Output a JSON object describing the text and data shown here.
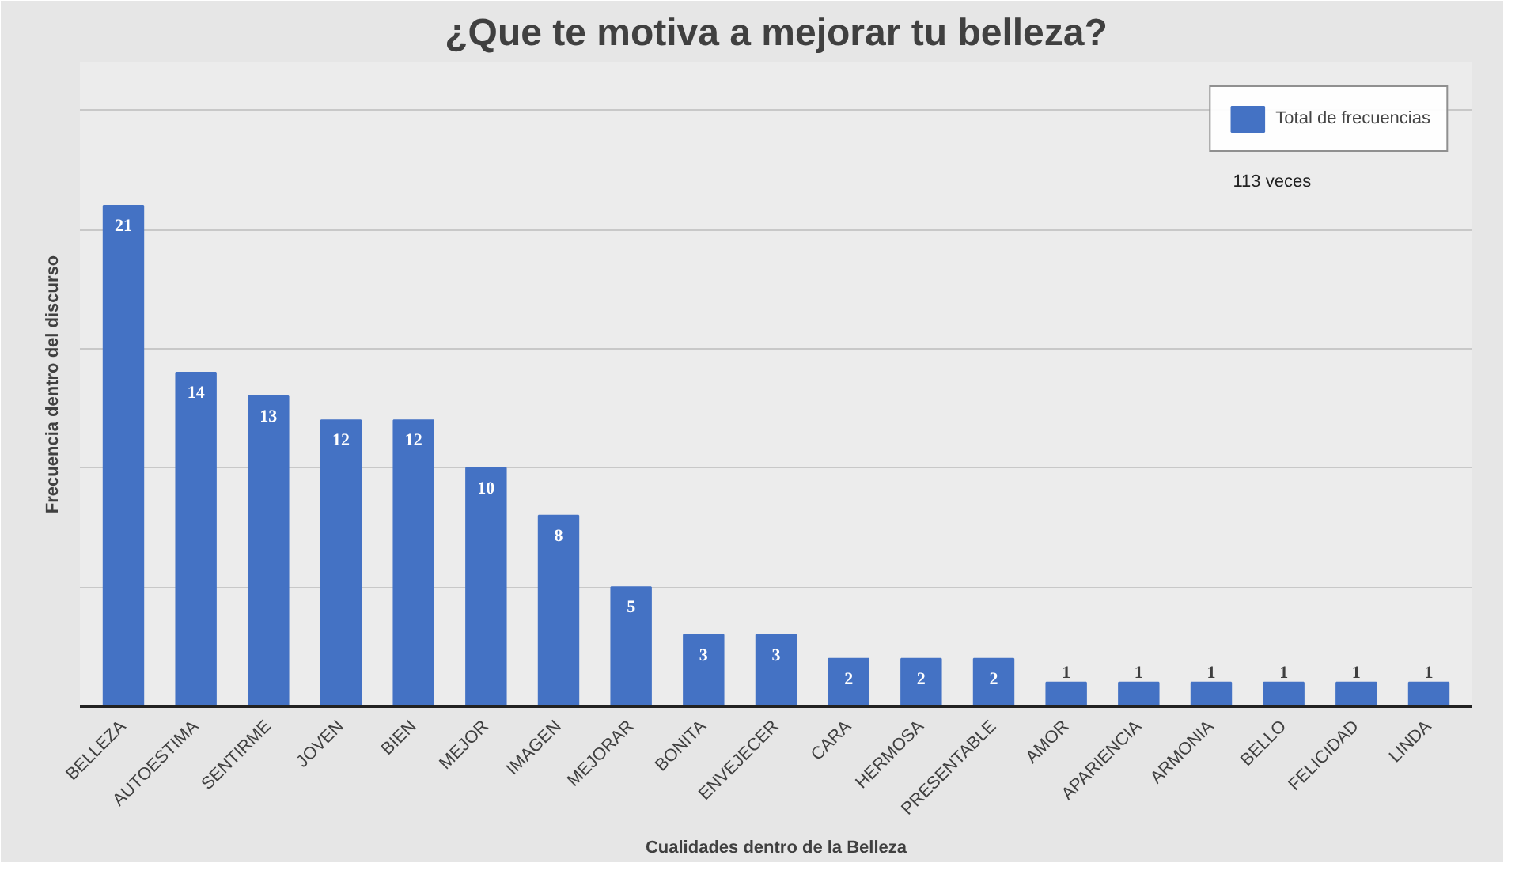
{
  "chart_data": {
    "type": "bar",
    "title": "¿Que te motiva a mejorar tu belleza?",
    "xlabel": "Cualidades dentro de la Belleza",
    "ylabel": "Frecuencia dentro del discurso",
    "categories": [
      "BELLEZA",
      "AUTOESTIMA",
      "SENTIRME",
      "JOVEN",
      "BIEN",
      "MEJOR",
      "IMAGEN",
      "MEJORAR",
      "BONITA",
      "ENVEJECER",
      "CARA",
      "HERMOSA",
      "PRESENTABLE",
      "AMOR",
      "APARIENCIA",
      "ARMONIA",
      "BELLO",
      "FELICIDAD",
      "LINDA"
    ],
    "series": [
      {
        "name": "Total de frecuencias",
        "color": "#4472c4",
        "values": [
          21,
          14,
          13,
          12,
          12,
          10,
          8,
          5,
          3,
          3,
          2,
          2,
          2,
          1,
          1,
          1,
          1,
          1,
          1
        ]
      }
    ],
    "data_labels": true,
    "ylim": [
      0,
      27
    ],
    "yticks": [
      {
        "value": 0,
        "label": null
      },
      {
        "value": 5,
        "label": null
      },
      {
        "value": 10,
        "label": null
      },
      {
        "value": 15,
        "label": null
      },
      {
        "value": 20,
        "label": null
      },
      {
        "value": 25,
        "label": null
      }
    ],
    "tick_labels": "x",
    "grid": "y",
    "legend": "top right",
    "annotations": [
      "113 veces"
    ]
  }
}
